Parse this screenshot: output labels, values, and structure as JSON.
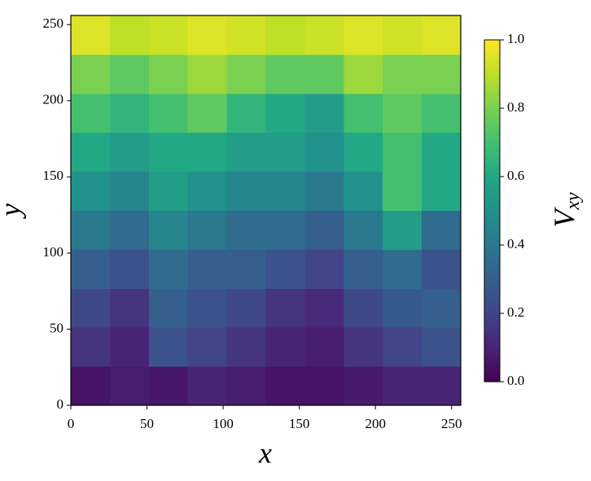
{
  "chart_data": {
    "type": "heatmap",
    "xlabel": "x",
    "ylabel": "y",
    "colorbar_label": "Vxy",
    "xlim": [
      0,
      256
    ],
    "ylim": [
      0,
      256
    ],
    "xticks": [
      0,
      50,
      100,
      150,
      200,
      250
    ],
    "yticks": [
      0,
      50,
      100,
      150,
      200,
      250
    ],
    "colormap": "viridis",
    "clim": [
      0,
      1
    ],
    "cticks": [
      {
        "value": 0,
        "label": "0.0"
      },
      {
        "value": 0.2,
        "label": "0.2"
      },
      {
        "value": 0.4,
        "label": "0.4"
      },
      {
        "value": 0.6,
        "label": "0.6"
      },
      {
        "value": 0.8,
        "label": "0.8"
      },
      {
        "value": 1,
        "label": "1.0"
      }
    ],
    "z": [
      [
        0.05,
        0.08,
        0.06,
        0.1,
        0.08,
        0.05,
        0.05,
        0.07,
        0.1,
        0.1
      ],
      [
        0.15,
        0.1,
        0.25,
        0.2,
        0.15,
        0.1,
        0.08,
        0.15,
        0.2,
        0.25
      ],
      [
        0.22,
        0.15,
        0.3,
        0.25,
        0.22,
        0.15,
        0.12,
        0.22,
        0.28,
        0.3
      ],
      [
        0.3,
        0.25,
        0.35,
        0.3,
        0.3,
        0.25,
        0.2,
        0.3,
        0.35,
        0.25
      ],
      [
        0.4,
        0.35,
        0.45,
        0.4,
        0.35,
        0.35,
        0.3,
        0.4,
        0.55,
        0.35
      ],
      [
        0.5,
        0.45,
        0.55,
        0.5,
        0.45,
        0.45,
        0.4,
        0.5,
        0.7,
        0.6
      ],
      [
        0.6,
        0.55,
        0.6,
        0.6,
        0.55,
        0.55,
        0.5,
        0.6,
        0.7,
        0.6
      ],
      [
        0.7,
        0.65,
        0.7,
        0.75,
        0.65,
        0.6,
        0.55,
        0.7,
        0.75,
        0.7
      ],
      [
        0.8,
        0.75,
        0.8,
        0.85,
        0.8,
        0.75,
        0.75,
        0.85,
        0.8,
        0.8
      ],
      [
        0.95,
        0.9,
        0.92,
        0.95,
        0.93,
        0.9,
        0.92,
        0.95,
        0.93,
        0.95
      ]
    ]
  }
}
